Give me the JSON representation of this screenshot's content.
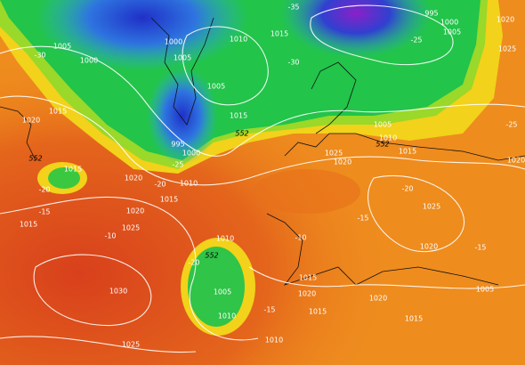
{
  "isobar_labels": [
    "1005",
    "1000",
    "1015",
    "1020",
    "1000",
    "1005",
    "1010",
    "1015",
    "1005",
    "995",
    "1000",
    "1015",
    "1005",
    "995",
    "1000",
    "1020",
    "1025",
    "1005",
    "1010",
    "1015",
    "1025",
    "1020",
    "1015",
    "1020",
    "1010",
    "1015",
    "1020",
    "1015",
    "1025",
    "1010",
    "1005",
    "1010",
    "1015",
    "1020",
    "1015",
    "1020",
    "1025",
    "1020",
    "1005",
    "1030",
    "1025",
    "1010",
    "1020",
    "1015"
  ],
  "temperature_labels": [
    "-30",
    "-35",
    "-30",
    "-25",
    "-25",
    "-20",
    "-15",
    "-10",
    "-20",
    "-20",
    "-15",
    "-20",
    "-10",
    "-15",
    "-15",
    "-25"
  ],
  "thickness_labels": [
    "552",
    "552",
    "552",
    "552"
  ]
}
